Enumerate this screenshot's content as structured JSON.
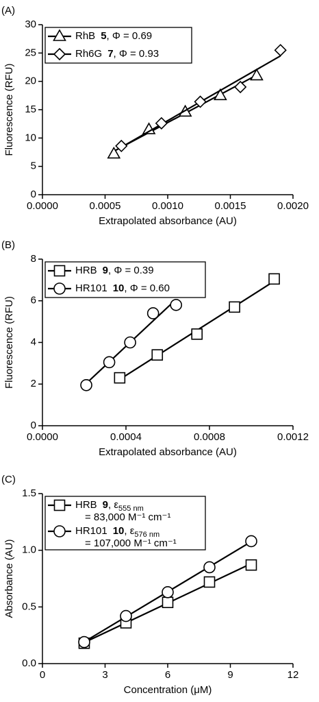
{
  "chart_data": [
    {
      "type": "scatter",
      "panel": "(A)",
      "xlabel": "Extrapolated absorbance (AU)",
      "ylabel": "Fluorescence (RFU)",
      "xlim": [
        0,
        0.002
      ],
      "xticks": [
        {
          "value": 0,
          "label": "0.0000"
        },
        {
          "value": 0.0005,
          "label": "0.0005"
        },
        {
          "value": 0.001,
          "label": "0.0010"
        },
        {
          "value": 0.0015,
          "label": "0.0015"
        },
        {
          "value": 0.002,
          "label": "0.0020"
        }
      ],
      "ylim": [
        0,
        30
      ],
      "yticks": [
        0,
        5,
        10,
        15,
        20,
        25,
        30
      ],
      "series": [
        {
          "name": "RhB",
          "compound": "5",
          "note": ",  Φ = 0.69",
          "marker": "triangle",
          "color": "#000000",
          "x": [
            0.00057,
            0.00085,
            0.00114,
            0.00142,
            0.00171
          ],
          "values": [
            7.2,
            11.5,
            14.6,
            17.5,
            21.0
          ]
        },
        {
          "name": "Rh6G",
          "compound": "7",
          "note": ",  Φ = 0.93",
          "marker": "diamond",
          "color": "#000000",
          "x": [
            0.00063,
            0.00095,
            0.00126,
            0.00158,
            0.0019
          ],
          "values": [
            8.6,
            12.6,
            16.4,
            19.0,
            25.5
          ]
        }
      ]
    },
    {
      "type": "scatter",
      "panel": "(B)",
      "xlabel": "Extrapolated absorbance (AU)",
      "ylabel": "Fluorescence (RFU)",
      "xlim": [
        0,
        0.0012
      ],
      "xticks": [
        {
          "value": 0,
          "label": "0.0000"
        },
        {
          "value": 0.0004,
          "label": "0.0004"
        },
        {
          "value": 0.0008,
          "label": "0.0008"
        },
        {
          "value": 0.0012,
          "label": "0.0012"
        }
      ],
      "ylim": [
        0,
        8
      ],
      "yticks": [
        0,
        2,
        4,
        6,
        8
      ],
      "series": [
        {
          "name": "HRB",
          "compound": "9",
          "note": ",  Φ = 0.39",
          "marker": "square",
          "color": "#000000",
          "x": [
            0.00037,
            0.00055,
            0.00074,
            0.00092,
            0.00111
          ],
          "values": [
            2.3,
            3.4,
            4.4,
            5.7,
            7.05
          ]
        },
        {
          "name": "HR101",
          "compound": "10",
          "note": ",  Φ = 0.60",
          "marker": "circle",
          "color": "#000000",
          "x": [
            0.00021,
            0.00032,
            0.00042,
            0.00053,
            0.00064
          ],
          "values": [
            1.95,
            3.05,
            4.0,
            5.4,
            5.8
          ]
        }
      ]
    },
    {
      "type": "scatter",
      "panel": "(C)",
      "xlabel": "Concentration (μM)",
      "ylabel": "Absorbance (AU)",
      "xlim": [
        0,
        12
      ],
      "xticks": [
        0,
        3,
        6,
        9,
        12
      ],
      "ylim": [
        0,
        1.5
      ],
      "yticks": [
        {
          "value": 0,
          "label": "0.0"
        },
        0.5,
        {
          "value": 1,
          "label": "1.0"
        },
        1.5
      ],
      "series": [
        {
          "name": "HRB",
          "compound": "9",
          "note": ",  ε",
          "note_sub": "555 nm",
          "note_line2": "= 83,000 M⁻¹ cm⁻¹",
          "marker": "square",
          "color": "#000000",
          "x": [
            2,
            4,
            6,
            8,
            10
          ],
          "values": [
            0.18,
            0.36,
            0.54,
            0.72,
            0.87
          ]
        },
        {
          "name": "HR101",
          "compound": "10",
          "note": ",  ε",
          "note_sub": "576 nm",
          "note_line2": "= 107,000 M⁻¹ cm⁻¹",
          "marker": "circle",
          "color": "#000000",
          "x": [
            2,
            4,
            6,
            8,
            10
          ],
          "values": [
            0.19,
            0.42,
            0.63,
            0.85,
            1.08
          ]
        }
      ]
    }
  ]
}
